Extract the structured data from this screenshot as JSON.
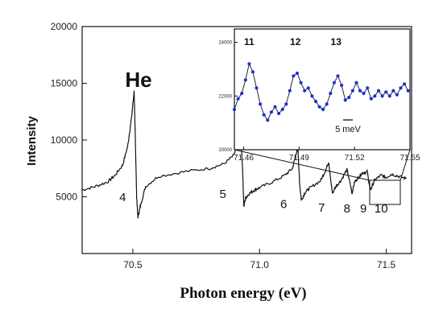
{
  "chart_data": [
    {
      "type": "line",
      "title": "He",
      "xlabel": "Photon energy (eV)",
      "ylabel": "Intensity",
      "xlim": [
        70.3,
        71.6
      ],
      "ylim": [
        0,
        20000
      ],
      "x_ticks": [
        70.5,
        71.0,
        71.5
      ],
      "x_tick_labels": [
        "70.5",
        "71.0",
        "71.5"
      ],
      "y_ticks": [
        5000,
        10000,
        15000,
        20000
      ],
      "y_tick_labels": [
        "5000",
        "10000",
        "15000",
        "20000"
      ],
      "grid": false,
      "series": [
        {
          "color": "#111111",
          "x": [
            70.3,
            70.35,
            70.4,
            70.43,
            70.46,
            70.48,
            70.495,
            70.505,
            70.51,
            70.515,
            70.52,
            70.53,
            70.55,
            70.6,
            70.7,
            70.8,
            70.86,
            70.9,
            70.915,
            70.925,
            70.933,
            70.938,
            70.945,
            70.96,
            70.98,
            71.0,
            71.05,
            71.1,
            71.13,
            71.145,
            71.152,
            71.158,
            71.165,
            71.18,
            71.2,
            71.24,
            71.26,
            71.273,
            71.28,
            71.288,
            71.3,
            71.32,
            71.345,
            71.36,
            71.365,
            71.375,
            71.39,
            71.405,
            71.425,
            71.435,
            71.44,
            71.455,
            71.48,
            71.5,
            71.52,
            71.55,
            71.58
          ],
          "y": [
            5600,
            5900,
            6300,
            6900,
            7800,
            9500,
            12000,
            14300,
            10000,
            5000,
            3200,
            4200,
            5900,
            6800,
            7200,
            7500,
            7900,
            8700,
            10000,
            11000,
            7500,
            4200,
            4900,
            5300,
            5600,
            5800,
            6300,
            6900,
            7500,
            8900,
            9100,
            6200,
            4700,
            5400,
            5800,
            6400,
            7300,
            8100,
            6600,
            5300,
            5900,
            6400,
            7400,
            5900,
            5300,
            6300,
            6700,
            7100,
            7200,
            5800,
            5700,
            6500,
            6900,
            6700,
            7000,
            6800,
            6600
          ]
        }
      ],
      "annotations": [
        "4",
        "5",
        "6",
        "7",
        "8",
        "9",
        "10"
      ]
    },
    {
      "type": "scatter",
      "xlim": [
        71.455,
        71.55
      ],
      "ylim": [
        20000,
        24500
      ],
      "x_ticks": [
        71.46,
        71.49,
        71.52,
        71.55
      ],
      "x_tick_labels": [
        "71.46",
        "71.49",
        "71.52",
        "71.55"
      ],
      "y_ticks": [
        20000,
        22000,
        24000
      ],
      "y_tick_labels": [
        "20000",
        "22000",
        "24000"
      ],
      "grid": false,
      "marker_color": "#1a2fd8",
      "series": [
        {
          "x": [
            71.455,
            71.457,
            71.459,
            71.461,
            71.463,
            71.465,
            71.467,
            71.469,
            71.471,
            71.473,
            71.475,
            71.477,
            71.479,
            71.481,
            71.483,
            71.485,
            71.487,
            71.489,
            71.491,
            71.493,
            71.495,
            71.497,
            71.499,
            71.501,
            71.503,
            71.505,
            71.507,
            71.509,
            71.511,
            71.513,
            71.515,
            71.517,
            71.519,
            71.521,
            71.523,
            71.525,
            71.527,
            71.529,
            71.531,
            71.533,
            71.535,
            71.537,
            71.539,
            71.541,
            71.543,
            71.545,
            71.547,
            71.549
          ],
          "y": [
            21500,
            21900,
            22100,
            22600,
            23200,
            22900,
            22300,
            21700,
            21300,
            21100,
            21400,
            21600,
            21350,
            21500,
            21700,
            22200,
            22750,
            22850,
            22500,
            22200,
            22300,
            22000,
            21800,
            21600,
            21500,
            21700,
            22100,
            22500,
            22750,
            22400,
            21850,
            21950,
            22200,
            22500,
            22200,
            22100,
            22300,
            21900,
            22000,
            22200,
            22000,
            22150,
            22000,
            22200,
            22050,
            22300,
            22450,
            22200
          ]
        }
      ],
      "annotations": [
        "11",
        "12",
        "13"
      ],
      "scale_bar_label": "5 meV"
    }
  ]
}
